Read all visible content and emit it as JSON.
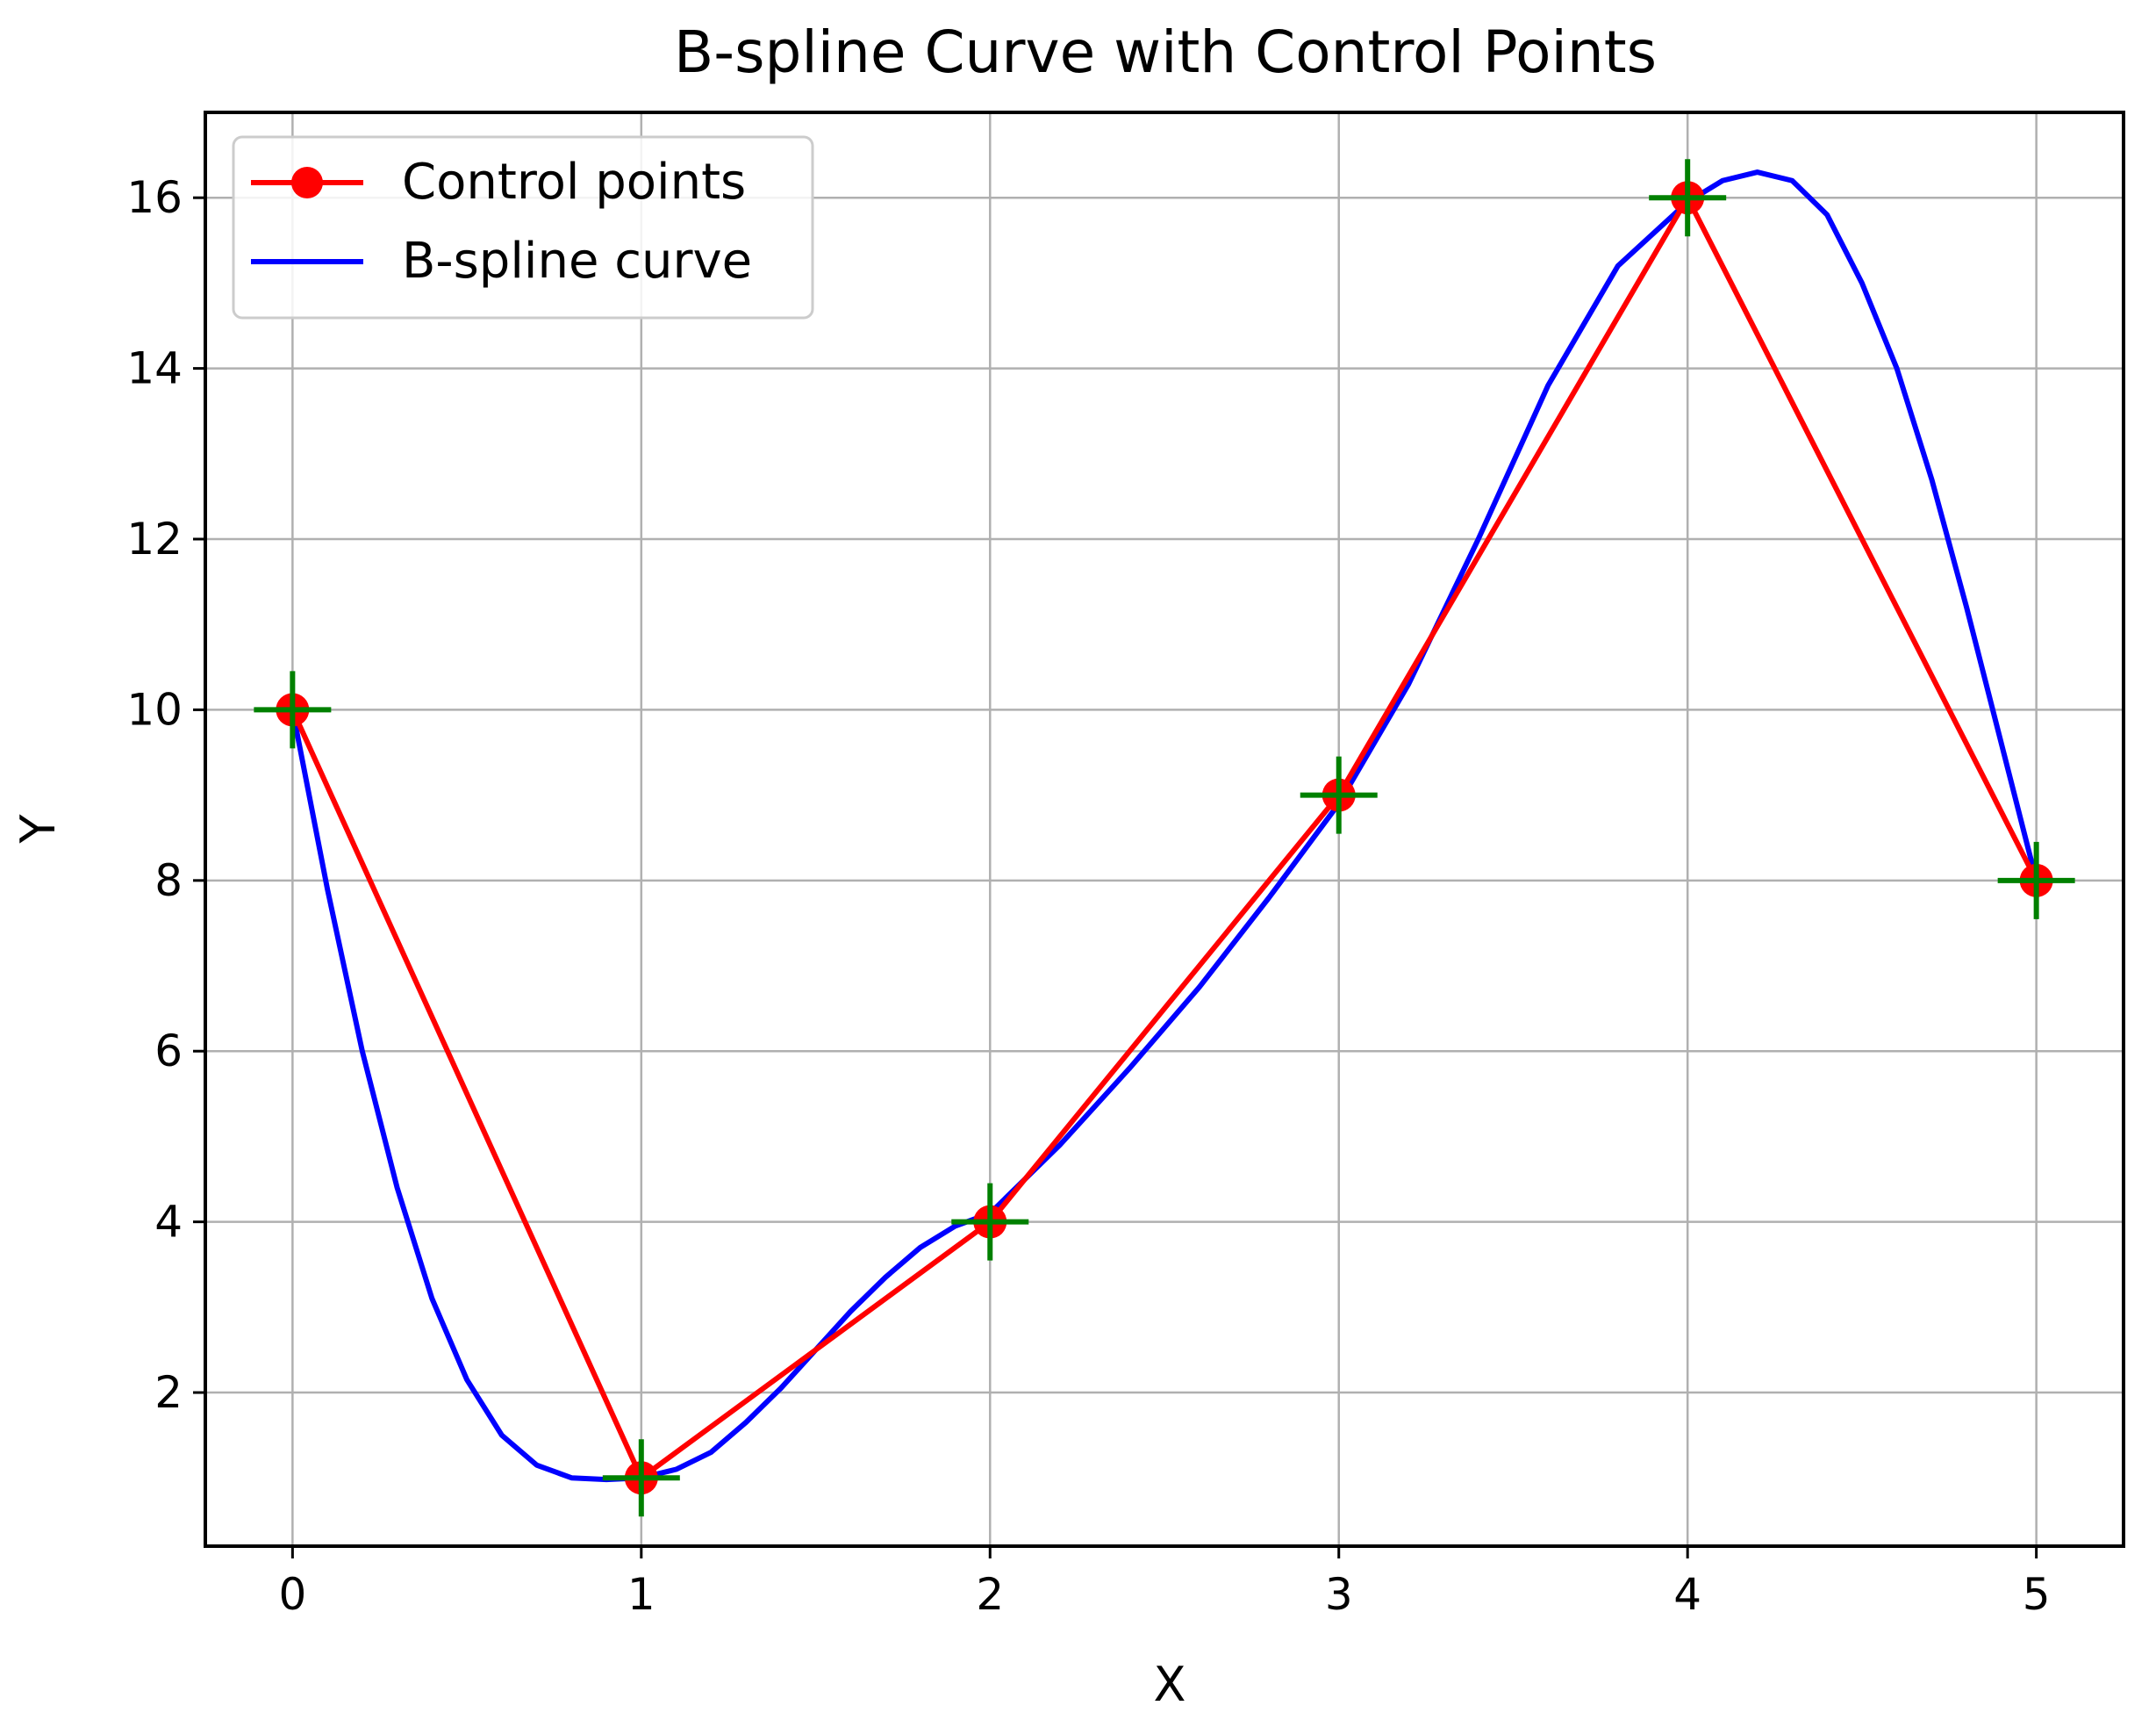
{
  "chart_data": {
    "type": "line",
    "title": "B-spline Curve with Control Points",
    "xlabel": "X",
    "ylabel": "Y",
    "xlim": [
      -0.25,
      5.25
    ],
    "ylim": [
      0.2,
      17.0
    ],
    "xticks": [
      0,
      1,
      2,
      3,
      4,
      5
    ],
    "yticks": [
      2,
      4,
      6,
      8,
      10,
      12,
      14,
      16
    ],
    "grid": true,
    "legend_position": "top-left",
    "series": [
      {
        "name": "Control points",
        "color": "#ff0000",
        "style": "line-with-circle-markers",
        "x": [
          0,
          1,
          2,
          3,
          4,
          5
        ],
        "y": [
          10,
          1,
          4,
          9,
          16,
          8
        ]
      },
      {
        "name": "B-spline curve",
        "color": "#0000ff",
        "style": "line",
        "x": [
          0,
          0.1,
          0.2,
          0.3,
          0.4,
          0.5,
          0.6,
          0.7,
          0.8,
          0.9,
          1.0,
          1.1,
          1.2,
          1.3,
          1.4,
          1.5,
          1.6,
          1.7,
          1.8,
          1.9,
          2.0,
          2.2,
          2.4,
          2.6,
          2.8,
          3.0,
          3.2,
          3.4,
          3.6,
          3.8,
          4.0,
          4.1,
          4.2,
          4.3,
          4.4,
          4.5,
          4.6,
          4.7,
          4.8,
          4.9,
          5.0
        ],
        "y": [
          10,
          7.9,
          6.0,
          4.4,
          3.1,
          2.15,
          1.5,
          1.15,
          1.0,
          0.98,
          1.0,
          1.1,
          1.3,
          1.65,
          2.05,
          2.5,
          2.95,
          3.35,
          3.7,
          3.95,
          4.1,
          4.9,
          5.8,
          6.75,
          7.8,
          8.9,
          10.3,
          12.0,
          13.8,
          15.2,
          15.95,
          16.2,
          16.3,
          16.2,
          15.8,
          15.0,
          14.0,
          12.7,
          11.2,
          9.6,
          8.0
        ]
      },
      {
        "name": "",
        "color": "#008000",
        "style": "plus-markers",
        "x": [
          0,
          1,
          2,
          3,
          4,
          5
        ],
        "y": [
          10,
          1,
          4,
          9,
          16,
          8
        ]
      }
    ]
  }
}
